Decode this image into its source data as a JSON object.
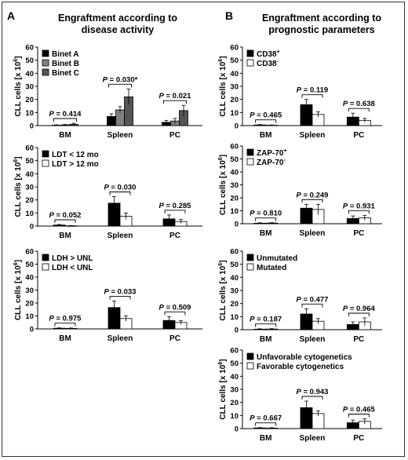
{
  "panels": [
    {
      "letter": "A",
      "title_line1": "Engraftment according to",
      "title_line2": "disease activity"
    },
    {
      "letter": "B",
      "title_line1": "Engraftment according to",
      "title_line2": "prognostic parameters"
    }
  ],
  "chart_data": [
    {
      "type": "bar",
      "panel": "A",
      "categories": [
        "BM",
        "Spleen",
        "PC"
      ],
      "ylabel": "CLL cells [x 10",
      "ylabel_sup": "6",
      "ylabel_end": "]",
      "ylim": [
        0,
        60
      ],
      "yticks": [
        0,
        10,
        20,
        30,
        40,
        50,
        60
      ],
      "series": [
        {
          "name": "Binet A",
          "color": "#000000",
          "values": [
            0.3,
            7,
            2.5
          ],
          "errors": [
            0.3,
            2,
            1.5
          ]
        },
        {
          "name": "Binet B",
          "color": "#808080",
          "values": [
            0.5,
            12,
            3.5
          ],
          "errors": [
            0.4,
            2.5,
            2
          ]
        },
        {
          "name": "Binet C",
          "color": "#555555",
          "values": [
            1,
            22,
            11.5
          ],
          "errors": [
            0.8,
            6,
            4
          ]
        }
      ],
      "pvalues": [
        "P = 0.414",
        "P = 0.030*",
        "P = 0.021"
      ]
    },
    {
      "type": "bar",
      "panel": "A",
      "categories": [
        "BM",
        "Spleen",
        "PC"
      ],
      "ylabel": "CLL cells [x 10",
      "ylabel_sup": "6",
      "ylabel_end": "]",
      "ylim": [
        0,
        60
      ],
      "yticks": [
        0,
        10,
        20,
        30,
        40,
        50,
        60
      ],
      "series": [
        {
          "name": "LDT < 12 mo",
          "color": "#000000",
          "values": [
            0.8,
            17.5,
            5.5
          ],
          "errors": [
            0.4,
            5,
            3
          ]
        },
        {
          "name": "LDT > 12 mo",
          "color": "#ffffff",
          "values": [
            0.2,
            7.5,
            3.5
          ],
          "errors": [
            0.2,
            2.5,
            1.5
          ]
        }
      ],
      "pvalues": [
        "P = 0.052",
        "P = 0.030",
        "P = 0.285"
      ]
    },
    {
      "type": "bar",
      "panel": "A",
      "categories": [
        "BM",
        "Spleen",
        "PC"
      ],
      "ylabel": "CLL cells [x 10",
      "ylabel_sup": "6",
      "ylabel_end": "]",
      "ylim": [
        0,
        60
      ],
      "yticks": [
        0,
        10,
        20,
        30,
        40,
        50,
        60
      ],
      "series": [
        {
          "name": "LDH > UNL",
          "color": "#000000",
          "values": [
            0.5,
            16.5,
            6.5
          ],
          "errors": [
            0.3,
            5,
            3
          ]
        },
        {
          "name": "LDH < UNL",
          "color": "#ffffff",
          "values": [
            0.4,
            8,
            5
          ],
          "errors": [
            0.3,
            2,
            1.5
          ]
        }
      ],
      "pvalues": [
        "P = 0.975",
        "P = 0.033",
        "P = 0.509"
      ]
    },
    {
      "type": "bar",
      "panel": "B",
      "categories": [
        "BM",
        "Spleen",
        "PC"
      ],
      "ylabel": "CLL cells [x 10",
      "ylabel_sup": "6",
      "ylabel_end": "]",
      "ylim": [
        0,
        60
      ],
      "yticks": [
        0,
        10,
        20,
        30,
        40,
        50,
        60
      ],
      "series": [
        {
          "name": "CD38",
          "sup": "+",
          "color": "#000000",
          "values": [
            0.5,
            16,
            6.5
          ],
          "errors": [
            0.3,
            4,
            3
          ]
        },
        {
          "name": "CD38",
          "sup": "-",
          "color": "#ffffff",
          "values": [
            0.3,
            8.5,
            4
          ],
          "errors": [
            0.2,
            2,
            1.5
          ]
        }
      ],
      "pvalues": [
        "P = 0.465",
        "P = 0.119",
        "P = 0.638"
      ]
    },
    {
      "type": "bar",
      "panel": "B",
      "categories": [
        "BM",
        "Spleen",
        "PC"
      ],
      "ylabel": "CLL cells [x 10",
      "ylabel_sup": "6",
      "ylabel_end": "]",
      "ylim": [
        0,
        60
      ],
      "yticks": [
        0,
        10,
        20,
        30,
        40,
        50,
        60
      ],
      "series": [
        {
          "name": "ZAP-70",
          "sup": "+",
          "color": "#000000",
          "values": [
            0.4,
            12,
            4
          ],
          "errors": [
            0.3,
            3,
            2
          ]
        },
        {
          "name": "ZAP-70",
          "sup": "-",
          "color": "#ffffff",
          "values": [
            0.5,
            11,
            4.5
          ],
          "errors": [
            0.3,
            4,
            2
          ]
        }
      ],
      "pvalues": [
        "P = 0.810",
        "P = 0.249",
        "P = 0.931"
      ]
    },
    {
      "type": "bar",
      "panel": "B",
      "categories": [
        "BM",
        "Spleen",
        "PC"
      ],
      "ylabel": "CLL cells [x 10",
      "ylabel_sup": "6",
      "ylabel_end": "]",
      "ylim": [
        0,
        60
      ],
      "yticks": [
        0,
        10,
        20,
        30,
        40,
        50,
        60
      ],
      "series": [
        {
          "name": "Unmutated",
          "color": "#000000",
          "values": [
            0.4,
            12,
            4
          ],
          "errors": [
            0.3,
            4,
            2
          ]
        },
        {
          "name": "Mutated",
          "color": "#ffffff",
          "values": [
            0.5,
            6.5,
            6
          ],
          "errors": [
            0.3,
            2,
            3
          ]
        }
      ],
      "pvalues": [
        "P = 0.187",
        "P = 0.477",
        "P = 0.964"
      ]
    },
    {
      "type": "bar",
      "panel": "B",
      "categories": [
        "BM",
        "Spleen",
        "PC"
      ],
      "ylabel": "CLL cells [x 10",
      "ylabel_sup": "6",
      "ylabel_end": "]",
      "ylim": [
        0,
        60
      ],
      "yticks": [
        0,
        10,
        20,
        30,
        40,
        50,
        60
      ],
      "series": [
        {
          "name": "Unfavorable cytogenetics",
          "color": "#000000",
          "values": [
            0.5,
            16,
            4.5
          ],
          "errors": [
            0.3,
            5,
            2
          ]
        },
        {
          "name": "Favorable cytogenetics",
          "color": "#ffffff",
          "values": [
            0.4,
            11.5,
            5.5
          ],
          "errors": [
            0.3,
            2,
            2
          ]
        }
      ],
      "pvalues": [
        "P = 0.667",
        "P = 0.943",
        "P = 0.465"
      ]
    }
  ]
}
